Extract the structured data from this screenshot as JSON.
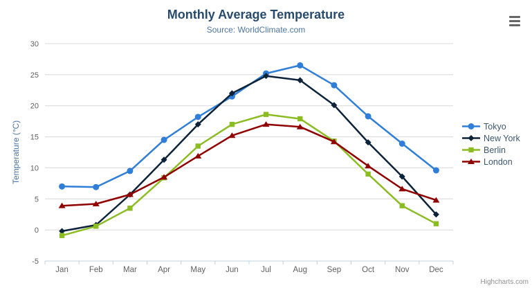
{
  "chart": {
    "title": "Monthly Average Temperature",
    "subtitle": "Source: WorldClimate.com",
    "credits": "Highcharts.com",
    "context_menu_icon": "hamburger-icon"
  },
  "colors": {
    "title": "#274b6d",
    "subtitle": "#4d759e",
    "axis_title": "#4d759e",
    "axis_labels": "#606060",
    "gridline": "#d8d8d8",
    "axis_line": "#c0d0e0",
    "legend_text": "#3e576f",
    "credits": "#909090",
    "burger": "#666666"
  },
  "chart_data": {
    "type": "line",
    "title": "Monthly Average Temperature",
    "subtitle": "Source: WorldClimate.com",
    "categories": [
      "Jan",
      "Feb",
      "Mar",
      "Apr",
      "May",
      "Jun",
      "Jul",
      "Aug",
      "Sep",
      "Oct",
      "Nov",
      "Dec"
    ],
    "series": [
      {
        "name": "Tokyo",
        "color": "#2f7ed8",
        "marker": "circle",
        "values": [
          7.0,
          6.9,
          9.5,
          14.5,
          18.2,
          21.5,
          25.2,
          26.5,
          23.3,
          18.3,
          13.9,
          9.6
        ]
      },
      {
        "name": "New York",
        "color": "#0d233a",
        "marker": "diamond",
        "values": [
          -0.2,
          0.8,
          5.7,
          11.3,
          17.0,
          22.0,
          24.8,
          24.1,
          20.1,
          14.1,
          8.6,
          2.5
        ]
      },
      {
        "name": "Berlin",
        "color": "#8bbc21",
        "marker": "square",
        "values": [
          -0.9,
          0.6,
          3.5,
          8.4,
          13.5,
          17.0,
          18.6,
          17.9,
          14.3,
          9.0,
          3.9,
          1.0
        ]
      },
      {
        "name": "London",
        "color": "#910000",
        "marker": "triangle",
        "values": [
          3.9,
          4.2,
          5.7,
          8.5,
          11.9,
          15.2,
          17.0,
          16.6,
          14.2,
          10.3,
          6.6,
          4.8
        ]
      }
    ],
    "xlabel": "",
    "ylabel": "Temperature (°C)",
    "ylim": [
      -5,
      30
    ],
    "ytick_step": 5,
    "grid": true,
    "legend_position": "right"
  }
}
